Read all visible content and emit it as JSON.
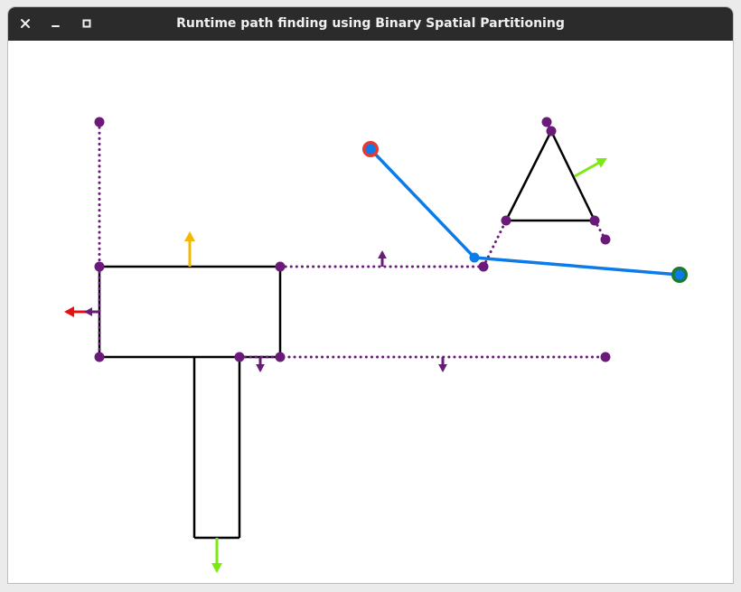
{
  "window": {
    "title": "Runtime path finding using Binary Spatial Partitioning",
    "controls": [
      {
        "name": "close-window-button",
        "icon": "close-icon",
        "glyph": "✕"
      },
      {
        "name": "minimize-window-button",
        "icon": "minimize-icon",
        "glyph": "–"
      },
      {
        "name": "maximize-window-button",
        "icon": "maximize-icon",
        "glyph": "□"
      }
    ]
  },
  "colors": {
    "wall": "#000000",
    "partition": "#6a1b7a",
    "path": "#0a7be8",
    "start": "#e53935",
    "goal": "#1b7a2e",
    "normal_yellow": "#f5b800",
    "normal_red": "#e51010",
    "normal_green": "#7bea10"
  },
  "scene": {
    "start_point": "start",
    "goal_point": "goal",
    "legend": []
  }
}
